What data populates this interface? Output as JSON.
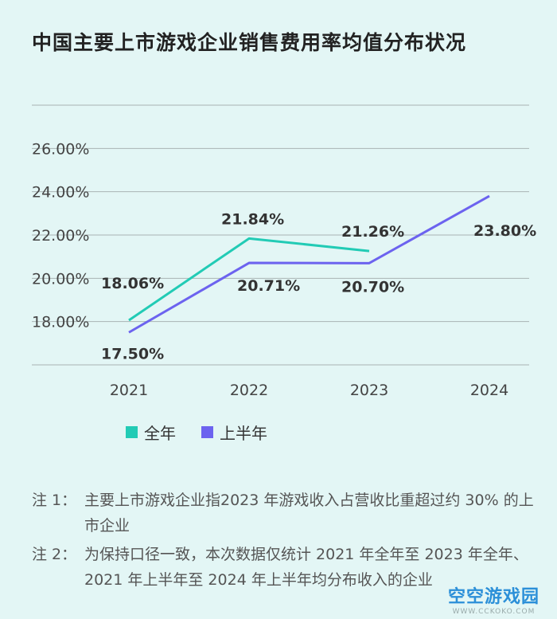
{
  "title": "中国主要上市游戏企业销售费用率均值分布状况",
  "chart_data": {
    "type": "line",
    "categories": [
      "2021",
      "2022",
      "2023",
      "2024"
    ],
    "series": [
      {
        "name": "全年",
        "color": "#22cbb5",
        "values": [
          18.06,
          21.84,
          21.26,
          null
        ],
        "labels": [
          "18.06%",
          "21.84%",
          "21.26%",
          null
        ]
      },
      {
        "name": "上半年",
        "color": "#6c63ef",
        "values": [
          17.5,
          20.71,
          20.7,
          23.8
        ],
        "labels": [
          "17.50%",
          "20.71%",
          "20.70%",
          "23.80%"
        ]
      }
    ],
    "yticks": [
      "18.00%",
      "20.00%",
      "22.00%",
      "24.00%",
      "26.00%"
    ],
    "ylim": [
      16,
      28
    ],
    "ytick_values": [
      18,
      20,
      22,
      24,
      26
    ],
    "grid": true
  },
  "legend": [
    {
      "label": "全年",
      "color": "#22cbb5"
    },
    {
      "label": "上半年",
      "color": "#6c63ef"
    }
  ],
  "notes": [
    {
      "prefix": "注 1：",
      "text": "主要上市游戏企业指2023 年游戏收入占营收比重超过约 30% 的上市企业"
    },
    {
      "prefix": "注 2：",
      "text": "为保持口径一致，本次数据仅统计 2021 年全年至 2023 年全年、2021 年上半年至 2024 年上半年均分布收入的企业"
    }
  ],
  "watermark": {
    "main": "空空游戏园",
    "url": "WWW.CCKOKO.COM"
  }
}
